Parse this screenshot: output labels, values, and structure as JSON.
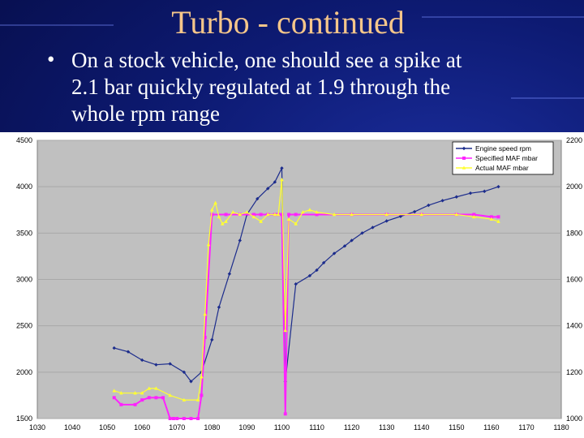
{
  "slide": {
    "title": "Turbo - continued",
    "bullet_symbol": "•",
    "bullet_lines": [
      "On a stock vehicle, one should see a spike at",
      "2.1 bar quickly regulated at 1.9 through the",
      "whole rpm range"
    ]
  },
  "colors": {
    "title": "#f5c68a",
    "engine_speed": "#1c2c8c",
    "specified_maf": "#ff22ff",
    "actual_maf": "#ffff33",
    "plot_bg": "#c0c0c0"
  },
  "chart_data": {
    "type": "line",
    "title": "",
    "xlabel": "",
    "ylabel": "",
    "xlim": [
      1030,
      1180
    ],
    "ylim_left": [
      1500,
      4500
    ],
    "ylim_right": [
      1000,
      2200
    ],
    "x_ticks": [
      "1030",
      "1040",
      "1050",
      "1060",
      "1070",
      "1080",
      "1090",
      "1100",
      "1110",
      "1120",
      "1130",
      "1140",
      "1150",
      "1160",
      "1170",
      "1180"
    ],
    "x_tick_labels": [
      "1030",
      "1040",
      "1050",
      "1060",
      "1070",
      "1080",
      "1090",
      "1100",
      "1110",
      "1120",
      "1130",
      "1140",
      "1150",
      "1160",
      "1170",
      "1180"
    ],
    "y_left_ticks": [
      1500,
      2000,
      2500,
      3000,
      3500,
      4000,
      4500
    ],
    "y_right_ticks": [
      1000,
      1200,
      1400,
      1600,
      1800,
      2000,
      2200
    ],
    "grid": true,
    "legend_position": "top-right",
    "series": [
      {
        "name": "Engine speed rpm",
        "axis": "left",
        "marker": "diamond",
        "x": [
          1052,
          1056,
          1060,
          1064,
          1068,
          1072,
          1074,
          1077,
          1080,
          1082,
          1085,
          1088,
          1090,
          1093,
          1096,
          1098,
          1100,
          1101,
          1104,
          1108,
          1110,
          1112,
          1115,
          1118,
          1120,
          1123,
          1126,
          1130,
          1134,
          1138,
          1142,
          1146,
          1150,
          1154,
          1158,
          1162
        ],
        "values": [
          2260,
          2220,
          2130,
          2080,
          2090,
          2000,
          1900,
          2000,
          2350,
          2700,
          3060,
          3420,
          3700,
          3870,
          3980,
          4050,
          4200,
          1900,
          2950,
          3040,
          3100,
          3180,
          3280,
          3360,
          3420,
          3500,
          3560,
          3630,
          3680,
          3730,
          3800,
          3850,
          3890,
          3930,
          3950,
          4000
        ],
        "values_read_note": ""
      },
      {
        "name": "Specified MAF mbar",
        "axis": "right",
        "marker": "square",
        "x": [
          1052,
          1054,
          1058,
          1060,
          1062,
          1064,
          1066,
          1068,
          1069,
          1070,
          1072,
          1074,
          1076,
          1077,
          1078,
          1080,
          1084,
          1088,
          1092,
          1094,
          1096,
          1098,
          1099,
          1100,
          1101,
          1102,
          1104,
          1110,
          1120,
          1130,
          1140,
          1150,
          1155,
          1160,
          1162
        ],
        "values": [
          1090,
          1060,
          1060,
          1080,
          1090,
          1090,
          1090,
          1000,
          1000,
          1000,
          1000,
          1000,
          1000,
          1100,
          1350,
          1880,
          1880,
          1880,
          1880,
          1880,
          1880,
          1880,
          1880,
          1880,
          1020,
          1880,
          1880,
          1880,
          1880,
          1880,
          1880,
          1880,
          1880,
          1870,
          1870
        ]
      },
      {
        "name": "Actual MAF mbar",
        "axis": "right",
        "marker": "triangle",
        "x": [
          1052,
          1054,
          1058,
          1060,
          1062,
          1064,
          1068,
          1072,
          1076,
          1077,
          1078,
          1079,
          1080,
          1081,
          1082,
          1083,
          1084,
          1086,
          1088,
          1090,
          1092,
          1094,
          1096,
          1098,
          1099,
          1100,
          1101,
          1102,
          1104,
          1106,
          1108,
          1110,
          1115,
          1120,
          1130,
          1140,
          1150,
          1155,
          1160,
          1162
        ],
        "values": [
          1120,
          1110,
          1110,
          1110,
          1130,
          1130,
          1100,
          1080,
          1080,
          1180,
          1450,
          1750,
          1900,
          1930,
          1870,
          1840,
          1850,
          1890,
          1880,
          1890,
          1870,
          1850,
          1880,
          1880,
          1880,
          2030,
          1380,
          1860,
          1840,
          1890,
          1900,
          1890,
          1880,
          1880,
          1880,
          1880,
          1880,
          1870,
          1860,
          1850
        ]
      }
    ]
  }
}
